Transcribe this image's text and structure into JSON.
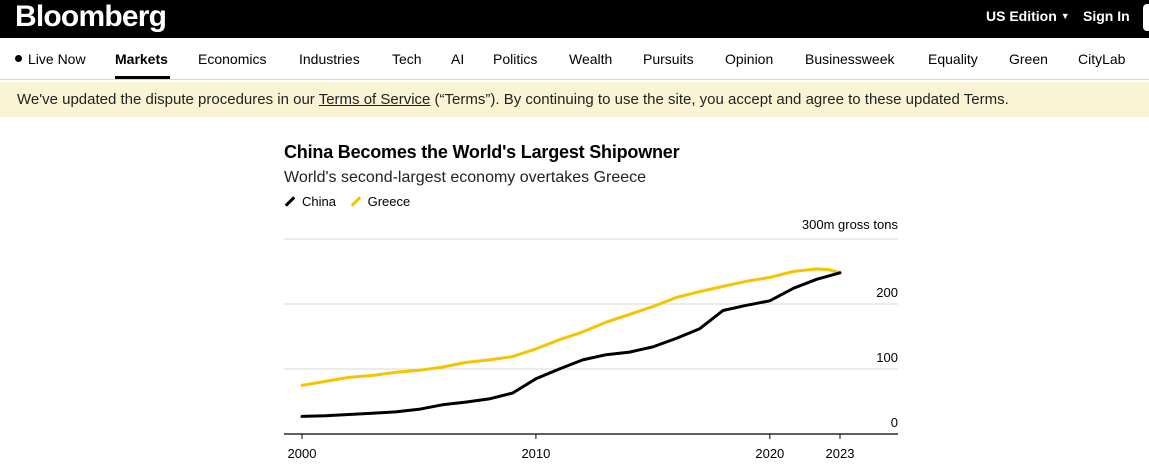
{
  "header": {
    "logo": "Bloomberg",
    "edition_label": "US Edition",
    "signin_label": "Sign In"
  },
  "nav": {
    "items": [
      {
        "label": "Live Now"
      },
      {
        "label": "Markets"
      },
      {
        "label": "Economics"
      },
      {
        "label": "Industries"
      },
      {
        "label": "Tech"
      },
      {
        "label": "AI"
      },
      {
        "label": "Politics"
      },
      {
        "label": "Wealth"
      },
      {
        "label": "Pursuits"
      },
      {
        "label": "Opinion"
      },
      {
        "label": "Businessweek"
      },
      {
        "label": "Equality"
      },
      {
        "label": "Green"
      },
      {
        "label": "CityLab"
      }
    ],
    "active": "Markets"
  },
  "notice": {
    "text_before": "We've updated the dispute procedures in our ",
    "link_text": "Terms of Service",
    "text_after": " (“Terms”). By continuing to use the site, you accept and agree to these updated Terms."
  },
  "chart_data": {
    "type": "line",
    "title": "China Becomes the World's Largest Shipowner",
    "subtitle": "World's second-largest economy overtakes Greece",
    "unit_label": "300m gross tons",
    "xlabel": "",
    "ylabel": "",
    "xlim": [
      1999.9,
      2025.2
    ],
    "ylim": [
      0,
      300
    ],
    "x_ticks": [
      2000,
      2010,
      2020,
      2023
    ],
    "y_ticks": [
      {
        "value": 0,
        "label": "0"
      },
      {
        "value": 100,
        "label": "100"
      },
      {
        "value": 200,
        "label": "200"
      },
      {
        "value": 300,
        "label": ""
      }
    ],
    "colors": {
      "China": "#000000",
      "Greece": "#f5c400"
    },
    "series": [
      {
        "name": "China",
        "x": [
          2000,
          2001,
          2002,
          2003,
          2004,
          2005,
          2006,
          2007,
          2008,
          2009,
          2010,
          2011,
          2012,
          2013,
          2014,
          2015,
          2016,
          2017,
          2018,
          2019,
          2020,
          2021,
          2022,
          2023
        ],
        "values": [
          27,
          28,
          30,
          32,
          34,
          38,
          45,
          49,
          54,
          63,
          85,
          100,
          114,
          122,
          126,
          134,
          147,
          162,
          190,
          198,
          205,
          224,
          238,
          248
        ]
      },
      {
        "name": "Greece",
        "x": [
          2000,
          2001,
          2002,
          2003,
          2004,
          2005,
          2006,
          2007,
          2008,
          2009,
          2010,
          2011,
          2012,
          2013,
          2014,
          2015,
          2016,
          2017,
          2018,
          2019,
          2020,
          2021,
          2022,
          2022.5,
          2023
        ],
        "values": [
          75,
          81,
          87,
          90,
          95,
          98,
          103,
          110,
          114,
          119,
          131,
          145,
          157,
          172,
          184,
          196,
          210,
          219,
          227,
          235,
          241,
          250,
          254,
          253,
          248
        ]
      }
    ]
  }
}
